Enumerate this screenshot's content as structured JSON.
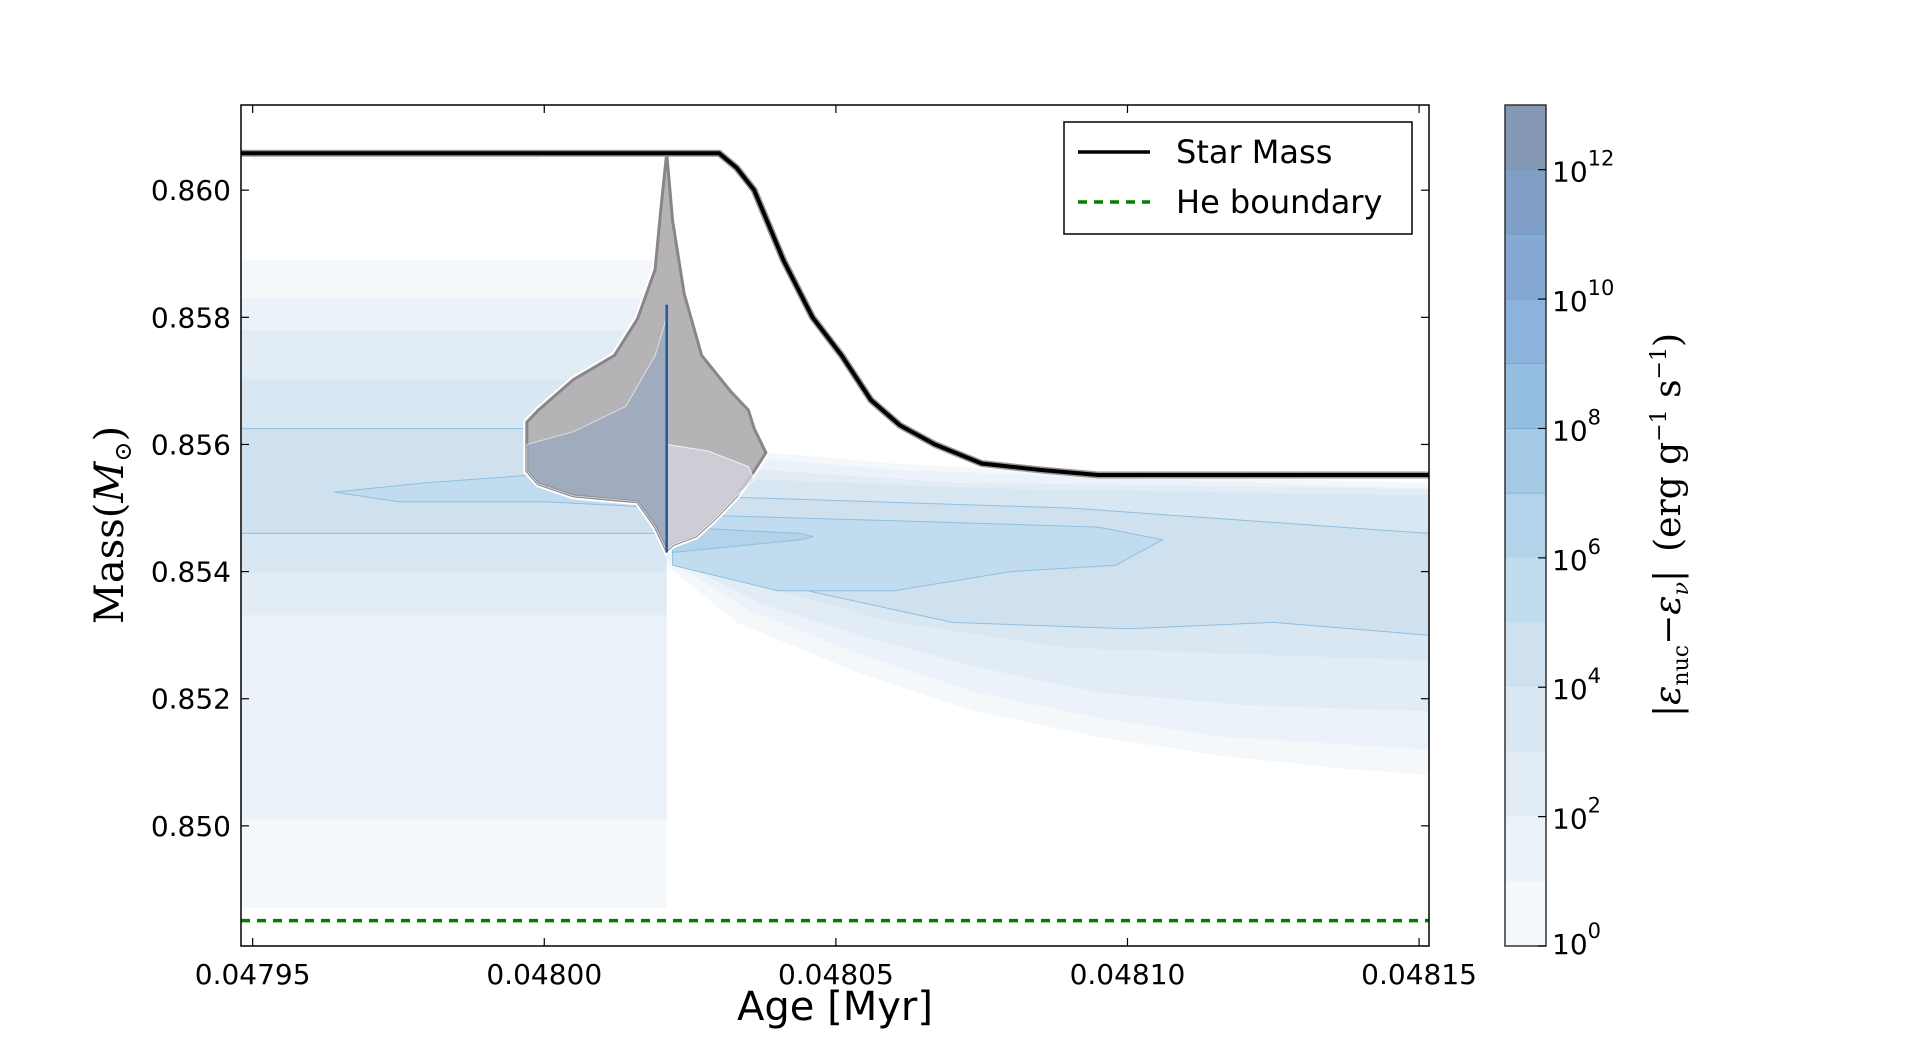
{
  "chart_data": {
    "type": "contour",
    "xlabel": "Age [Myr]",
    "ylabel": {
      "main": "Mass",
      "paren_open": "(",
      "sym": "M",
      "sub": "⊙",
      "paren_close": ")"
    },
    "xlim": [
      0.047948,
      0.0481517
    ],
    "ylim": [
      0.84811,
      0.86134
    ],
    "xticks": [
      0.04795,
      0.048,
      0.04805,
      0.0481,
      0.04815
    ],
    "xtick_labels": [
      "0.04795",
      "0.04800",
      "0.04805",
      "0.04810",
      "0.04815"
    ],
    "yticks": [
      0.85,
      0.852,
      0.854,
      0.856,
      0.858,
      0.86
    ],
    "ytick_labels": [
      "0.850",
      "0.852",
      "0.854",
      "0.856",
      "0.858",
      "0.860"
    ],
    "grid": false,
    "legend": {
      "placement": "top-right",
      "entries": [
        {
          "label": "Star Mass",
          "color": "#000000",
          "style": "solid"
        },
        {
          "label": "He boundary",
          "color": "#008000",
          "style": "dashed"
        }
      ]
    },
    "series": [
      {
        "name": "Star Mass",
        "type": "line",
        "color": "#000000",
        "points": [
          [
            0.047948,
            0.86058
          ],
          [
            0.04803,
            0.86058
          ],
          [
            0.048033,
            0.86035
          ],
          [
            0.048036,
            0.86
          ],
          [
            0.048041,
            0.8589
          ],
          [
            0.048046,
            0.858
          ],
          [
            0.048051,
            0.8574
          ],
          [
            0.048056,
            0.8567
          ],
          [
            0.048061,
            0.8563
          ],
          [
            0.048067,
            0.856
          ],
          [
            0.048075,
            0.8557
          ],
          [
            0.048085,
            0.8556
          ],
          [
            0.048095,
            0.85552
          ],
          [
            0.0481517,
            0.85552
          ]
        ]
      },
      {
        "name": "He boundary",
        "type": "line",
        "color": "#008000",
        "points": [
          [
            0.047948,
            0.84851
          ],
          [
            0.0481517,
            0.84851
          ]
        ]
      }
    ],
    "colorbar": {
      "label": {
        "bar1": "|",
        "eps": "ε",
        "sub1": "nuc",
        "minus": "−",
        "eps2": "ε",
        "sub2": "ν",
        "bar2": "|",
        "units": "(erg g",
        "exp1": "−1",
        "s": " s",
        "exp2": "−1",
        "close": ")"
      },
      "scale": "log10",
      "range_exp": [
        0,
        13
      ],
      "level_colors": [
        "#f4f8fb",
        "#ebf2f9",
        "#e2ecf5",
        "#d9e7f2",
        "#cfe1ef",
        "#c1dcee",
        "#b2d3ea",
        "#a4cae5",
        "#95bfe0",
        "#8bb3db",
        "#86a9d3",
        "#7f9fc6",
        "#8497b3"
      ],
      "ticks": [
        {
          "base": "10",
          "exp": "0",
          "value": 0
        },
        {
          "base": "10",
          "exp": "2",
          "value": 2
        },
        {
          "base": "10",
          "exp": "4",
          "value": 4
        },
        {
          "base": "10",
          "exp": "6",
          "value": 6
        },
        {
          "base": "10",
          "exp": "8",
          "value": 8
        },
        {
          "base": "10",
          "exp": "10",
          "value": 10
        },
        {
          "base": "10",
          "exp": "12",
          "value": 12
        }
      ]
    },
    "regions": [
      {
        "level": 1,
        "points": [
          [
            0.047948,
            0.84871
          ],
          [
            0.048021,
            0.84871
          ],
          [
            0.048021,
            0.8589
          ],
          [
            0.047948,
            0.8589
          ]
        ]
      },
      {
        "level": 1,
        "points": [
          [
            0.04795,
            0.86048
          ],
          [
            0.047999,
            0.86048
          ],
          [
            0.047999,
            0.86053
          ],
          [
            0.04795,
            0.86053
          ]
        ]
      },
      {
        "level": 2,
        "points": [
          [
            0.047948,
            0.8501
          ],
          [
            0.048021,
            0.8501
          ],
          [
            0.048021,
            0.85831
          ],
          [
            0.047948,
            0.85831
          ]
        ]
      },
      {
        "level": 3,
        "points": [
          [
            0.047948,
            0.85331
          ],
          [
            0.048021,
            0.85331
          ],
          [
            0.048021,
            0.85779
          ],
          [
            0.047948,
            0.85779
          ]
        ]
      },
      {
        "level": 4,
        "points": [
          [
            0.047948,
            0.85398
          ],
          [
            0.048021,
            0.85398
          ],
          [
            0.048021,
            0.85702
          ],
          [
            0.047948,
            0.85702
          ]
        ]
      },
      {
        "level": 5,
        "points": [
          [
            0.047948,
            0.8546
          ],
          [
            0.048021,
            0.8546
          ],
          [
            0.048021,
            0.85625
          ],
          [
            0.047948,
            0.85625
          ]
        ]
      },
      {
        "level": 6,
        "points": [
          [
            0.047964,
            0.85525
          ],
          [
            0.04798,
            0.8554
          ],
          [
            0.04801,
            0.8556
          ],
          [
            0.048021,
            0.8557
          ],
          [
            0.048021,
            0.855
          ],
          [
            0.048,
            0.8551
          ],
          [
            0.047975,
            0.8551
          ]
        ]
      },
      {
        "level": 1,
        "points": [
          [
            0.048021,
            0.8562
          ],
          [
            0.048035,
            0.8559
          ],
          [
            0.04806,
            0.8557
          ],
          [
            0.0481,
            0.8555
          ],
          [
            0.0481517,
            0.8554
          ],
          [
            0.0481517,
            0.8508
          ],
          [
            0.048137,
            0.8509
          ],
          [
            0.048116,
            0.8511
          ],
          [
            0.048095,
            0.8514
          ],
          [
            0.048074,
            0.8518
          ],
          [
            0.048054,
            0.8524
          ],
          [
            0.048033,
            0.8532
          ],
          [
            0.048021,
            0.8541
          ]
        ]
      },
      {
        "level": 2,
        "points": [
          [
            0.048022,
            0.8559
          ],
          [
            0.04806,
            0.8556
          ],
          [
            0.0481517,
            0.8553
          ],
          [
            0.0481517,
            0.8512
          ],
          [
            0.048116,
            0.8514
          ],
          [
            0.048095,
            0.8517
          ],
          [
            0.048074,
            0.8521
          ],
          [
            0.048054,
            0.8527
          ],
          [
            0.048035,
            0.8534
          ],
          [
            0.048021,
            0.8542
          ]
        ]
      },
      {
        "level": 3,
        "points": [
          [
            0.048022,
            0.8557
          ],
          [
            0.04807,
            0.8554
          ],
          [
            0.0481517,
            0.8553
          ],
          [
            0.0481517,
            0.8518
          ],
          [
            0.04812,
            0.8519
          ],
          [
            0.048095,
            0.8521
          ],
          [
            0.048074,
            0.8525
          ],
          [
            0.048054,
            0.853
          ],
          [
            0.048037,
            0.8535
          ],
          [
            0.048022,
            0.8542
          ]
        ]
      },
      {
        "level": 4,
        "points": [
          [
            0.048022,
            0.8555
          ],
          [
            0.04808,
            0.8553
          ],
          [
            0.0481517,
            0.8552
          ],
          [
            0.0481517,
            0.8526
          ],
          [
            0.04812,
            0.8527
          ],
          [
            0.04809,
            0.8528
          ],
          [
            0.04806,
            0.8532
          ],
          [
            0.04804,
            0.8537
          ],
          [
            0.048022,
            0.8543
          ]
        ]
      },
      {
        "level": 5,
        "points": [
          [
            0.048022,
            0.8552
          ],
          [
            0.04809,
            0.855
          ],
          [
            0.0481517,
            0.8546
          ],
          [
            0.0481517,
            0.853
          ],
          [
            0.048125,
            0.8532
          ],
          [
            0.0481,
            0.8531
          ],
          [
            0.04807,
            0.8532
          ],
          [
            0.04804,
            0.8538
          ],
          [
            0.048022,
            0.8543
          ]
        ]
      },
      {
        "level": 6,
        "points": [
          [
            0.048022,
            0.8549
          ],
          [
            0.04806,
            0.8548
          ],
          [
            0.048095,
            0.8547
          ],
          [
            0.048106,
            0.8545
          ],
          [
            0.048098,
            0.8541
          ],
          [
            0.04808,
            0.854
          ],
          [
            0.04806,
            0.8537
          ],
          [
            0.04804,
            0.8537
          ],
          [
            0.048022,
            0.8541
          ]
        ]
      },
      {
        "level": 7,
        "points": [
          [
            0.048022,
            0.8547
          ],
          [
            0.048044,
            0.8546
          ],
          [
            0.048046,
            0.85455
          ],
          [
            0.048044,
            0.8545
          ],
          [
            0.048022,
            0.8543
          ]
        ]
      }
    ],
    "negative_region": {
      "color": "#b6b3b7",
      "points": [
        [
          0.048021,
          0.86058
        ],
        [
          0.048022,
          0.85952
        ],
        [
          0.048024,
          0.85837
        ],
        [
          0.048027,
          0.8574
        ],
        [
          0.048032,
          0.85683
        ],
        [
          0.048035,
          0.85654
        ],
        [
          0.048036,
          0.85625
        ],
        [
          0.048038,
          0.85587
        ],
        [
          0.048036,
          0.85558
        ],
        [
          0.048033,
          0.85519
        ],
        [
          0.048029,
          0.85481
        ],
        [
          0.048026,
          0.85456
        ],
        [
          0.048022,
          0.85442
        ],
        [
          0.048021,
          0.85433
        ],
        [
          0.048019,
          0.85471
        ],
        [
          0.048016,
          0.8551
        ],
        [
          0.048012,
          0.85513
        ],
        [
          0.048005,
          0.85519
        ],
        [
          0.047999,
          0.85538
        ],
        [
          0.047997,
          0.85558
        ],
        [
          0.047997,
          0.85635
        ],
        [
          0.047999,
          0.85654
        ],
        [
          0.048005,
          0.85702
        ],
        [
          0.048012,
          0.8574
        ],
        [
          0.048016,
          0.85798
        ],
        [
          0.048019,
          0.85875
        ],
        [
          0.04802,
          0.85971
        ]
      ],
      "inner_blue": [
        [
          0.048021,
          0.858
        ],
        [
          0.048021,
          0.85433
        ],
        [
          0.048019,
          0.85471
        ],
        [
          0.048016,
          0.8551
        ],
        [
          0.048005,
          0.85519
        ],
        [
          0.047999,
          0.85538
        ],
        [
          0.047997,
          0.85558
        ],
        [
          0.047997,
          0.856
        ],
        [
          0.048005,
          0.8562
        ],
        [
          0.048014,
          0.8566
        ],
        [
          0.048019,
          0.8574
        ]
      ],
      "inner_grey_right": [
        [
          0.048021,
          0.856
        ],
        [
          0.048028,
          0.8559
        ],
        [
          0.048035,
          0.85565
        ],
        [
          0.048036,
          0.85545
        ],
        [
          0.048033,
          0.85519
        ],
        [
          0.048029,
          0.85481
        ],
        [
          0.048026,
          0.85456
        ],
        [
          0.048022,
          0.85442
        ],
        [
          0.048021,
          0.85433
        ]
      ],
      "core_line": [
        [
          0.048021,
          0.8582
        ],
        [
          0.048021,
          0.8543
        ]
      ]
    }
  }
}
